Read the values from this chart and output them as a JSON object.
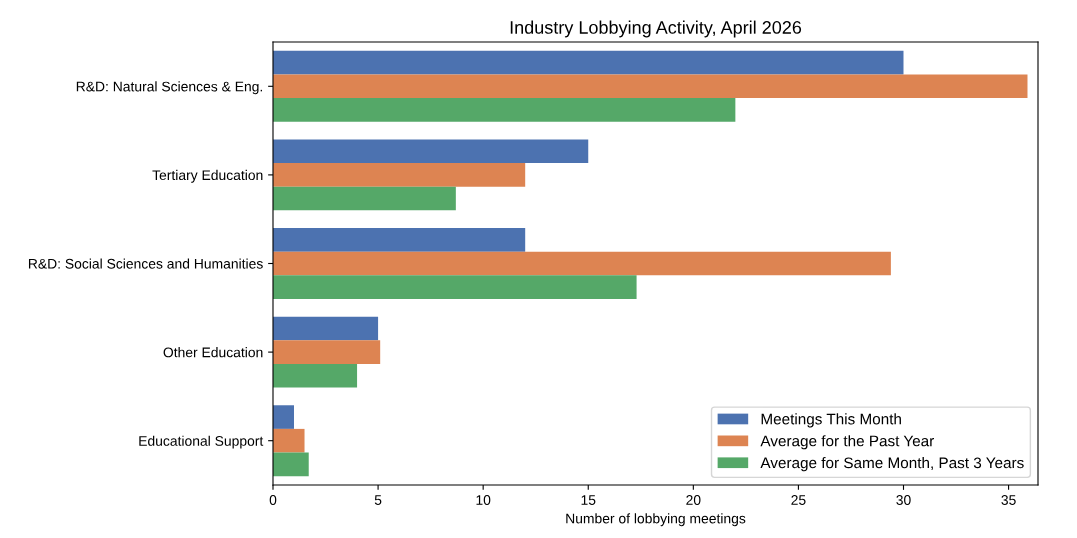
{
  "chart_data": {
    "type": "bar",
    "orientation": "horizontal",
    "title": "Industry Lobbying Activity, April 2026",
    "xlabel": "Number of lobbying meetings",
    "categories": [
      "R&D: Natural Sciences & Eng.",
      "Tertiary Education",
      "R&D: Social Sciences and Humanities",
      "Other Education",
      "Educational Support"
    ],
    "series": [
      {
        "name": "Meetings This Month",
        "color": "#4c72b0",
        "values": [
          30,
          15,
          12,
          5,
          1
        ]
      },
      {
        "name": "Average for the Past Year",
        "color": "#dd8452",
        "values": [
          35.9,
          12,
          29.4,
          5.1,
          1.5
        ]
      },
      {
        "name": "Average for Same Month, Past 3 Years",
        "color": "#55a868",
        "values": [
          22,
          8.7,
          17.3,
          4,
          1.7
        ]
      }
    ],
    "xlim": [
      0,
      36.4
    ],
    "xticks": [
      0,
      5,
      10,
      15,
      20,
      25,
      30,
      35
    ],
    "grid": false,
    "legend": "bottom right"
  }
}
